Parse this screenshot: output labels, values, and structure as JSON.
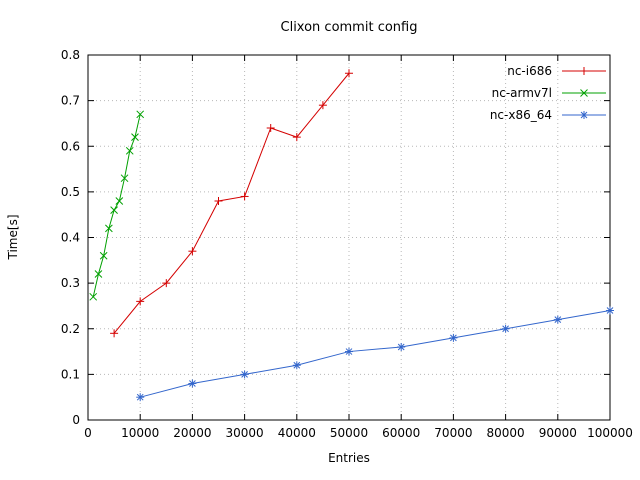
{
  "chart_data": {
    "type": "line",
    "title": "Clixon commit config",
    "xlabel": "Entries",
    "ylabel": "Time[s]",
    "xlim": [
      0,
      100000
    ],
    "ylim": [
      0,
      0.8
    ],
    "xticks": [
      0,
      10000,
      20000,
      30000,
      40000,
      50000,
      60000,
      70000,
      80000,
      90000,
      100000
    ],
    "yticks": [
      0,
      0.1,
      0.2,
      0.3,
      0.4,
      0.5,
      0.6,
      0.7,
      0.8
    ],
    "grid": true,
    "legend_position": "top-right-inside",
    "series": [
      {
        "name": "nc-i686",
        "color": "#d40000",
        "marker": "plus",
        "points": [
          [
            5000,
            0.19
          ],
          [
            10000,
            0.26
          ],
          [
            15000,
            0.3
          ],
          [
            20000,
            0.37
          ],
          [
            25000,
            0.48
          ],
          [
            30000,
            0.49
          ],
          [
            35000,
            0.64
          ],
          [
            40000,
            0.62
          ],
          [
            45000,
            0.69
          ],
          [
            50000,
            0.76
          ]
        ]
      },
      {
        "name": "nc-armv7l",
        "color": "#00a000",
        "marker": "cross",
        "points": [
          [
            1000,
            0.27
          ],
          [
            2000,
            0.32
          ],
          [
            3000,
            0.36
          ],
          [
            4000,
            0.42
          ],
          [
            5000,
            0.46
          ],
          [
            6000,
            0.48
          ],
          [
            7000,
            0.53
          ],
          [
            8000,
            0.59
          ],
          [
            9000,
            0.62
          ],
          [
            10000,
            0.67
          ]
        ]
      },
      {
        "name": "nc-x86_64",
        "color": "#3366cc",
        "marker": "star",
        "points": [
          [
            10000,
            0.05
          ],
          [
            20000,
            0.08
          ],
          [
            30000,
            0.1
          ],
          [
            40000,
            0.12
          ],
          [
            50000,
            0.15
          ],
          [
            60000,
            0.16
          ],
          [
            70000,
            0.18
          ],
          [
            80000,
            0.2
          ],
          [
            90000,
            0.22
          ],
          [
            100000,
            0.24
          ]
        ]
      }
    ]
  }
}
